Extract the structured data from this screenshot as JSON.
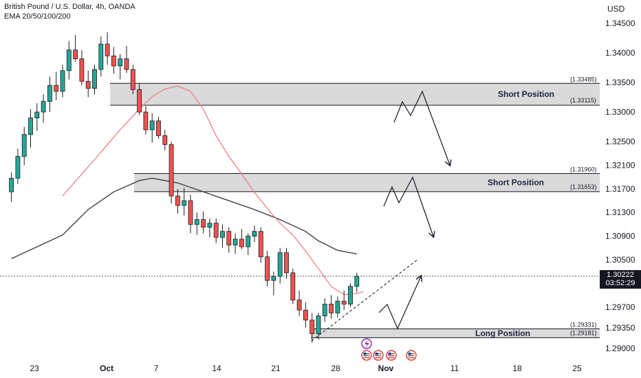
{
  "header": {
    "title": "British Pound / U.S. Dollar, 4h, OANDA",
    "indicator": "EMA 20/50/100/200"
  },
  "currency_label": "USD",
  "price_badge": {
    "price": "1.30222",
    "countdown": "03:52:29"
  },
  "colors": {
    "up": "#26a69a",
    "down": "#ef5350",
    "candle_body": "#1a1a1a",
    "ema_fast": "#f08080",
    "ema_slow": "#4a4a4a",
    "zone_fill": "#d4d4d4",
    "zone_border": "#131722"
  },
  "icons": [
    "lightning-event-icon",
    "us-flag-icon",
    "us-flag-icon",
    "us-flag-icon",
    "us-flag-icon"
  ],
  "chart_data": {
    "type": "candlestick",
    "symbol": "GBPUSD",
    "timeframe": "4h",
    "y_ticks": [
      "1.34500",
      "1.34000",
      "1.33500",
      "1.33000",
      "1.32500",
      "1.32100",
      "1.31700",
      "1.31300",
      "1.30900",
      "1.30500",
      "1.29700",
      "1.29350",
      "1.29000"
    ],
    "x_ticks": [
      "23",
      "Oct",
      "7",
      "14",
      "21",
      "28",
      "Nov",
      "11",
      "18",
      "25"
    ],
    "ylim": [
      1.29,
      1.346
    ],
    "zones": [
      {
        "label": "Short Position",
        "top": 1.33485,
        "bottom": 1.33115,
        "top_label": "(1.33485)",
        "bottom_label": "(1.33115)"
      },
      {
        "label": "Short Position",
        "top": 1.3196,
        "bottom": 1.31653,
        "top_label": "(1.31960)",
        "bottom_label": "(1.31653)"
      },
      {
        "label": "Long Position",
        "top": 1.29331,
        "bottom": 1.29181,
        "top_label": "(1.29331)",
        "bottom_label": "(1.29181)"
      }
    ],
    "last_price": 1.30222,
    "ema_fast_path": [
      [
        0,
        1.3158
      ],
      [
        3,
        1.3195
      ],
      [
        6,
        1.3232
      ],
      [
        9,
        1.327
      ],
      [
        12,
        1.3305
      ],
      [
        14,
        1.3326
      ],
      [
        16,
        1.3339
      ],
      [
        18,
        1.3344
      ],
      [
        20,
        1.3335
      ],
      [
        22,
        1.3305
      ],
      [
        24,
        1.326
      ],
      [
        26,
        1.3225
      ],
      [
        28,
        1.3195
      ],
      [
        30,
        1.3164
      ],
      [
        32,
        1.3137
      ],
      [
        34,
        1.3112
      ],
      [
        36,
        1.3092
      ],
      [
        38,
        1.3065
      ],
      [
        40,
        1.3035
      ],
      [
        42,
        1.3005
      ],
      [
        44,
        1.2991
      ],
      [
        46,
        1.2993
      ],
      [
        47,
        1.2996
      ]
    ],
    "ema_slow_path": [
      [
        -8,
        1.3052
      ],
      [
        0,
        1.3092
      ],
      [
        4,
        1.3135
      ],
      [
        8,
        1.3165
      ],
      [
        12,
        1.3184
      ],
      [
        14,
        1.3188
      ],
      [
        18,
        1.318
      ],
      [
        22,
        1.3165
      ],
      [
        26,
        1.315
      ],
      [
        30,
        1.3135
      ],
      [
        34,
        1.3118
      ],
      [
        38,
        1.3098
      ],
      [
        40,
        1.3082
      ],
      [
        43,
        1.3066
      ],
      [
        46,
        1.306
      ]
    ],
    "candles_ohlc": [
      [
        -8,
        1.3165,
        1.3198,
        1.3148,
        1.3188
      ],
      [
        -7,
        1.3188,
        1.3238,
        1.3178,
        1.3225
      ],
      [
        -6,
        1.3225,
        1.3275,
        1.321,
        1.3262
      ],
      [
        -5,
        1.3262,
        1.3305,
        1.324,
        1.329
      ],
      [
        -4,
        1.329,
        1.3315,
        1.3268,
        1.33
      ],
      [
        -3,
        1.33,
        1.333,
        1.3282,
        1.3318
      ],
      [
        -2,
        1.3318,
        1.336,
        1.33,
        1.3345
      ],
      [
        -1,
        1.3345,
        1.3368,
        1.332,
        1.3335
      ],
      [
        0,
        1.3335,
        1.338,
        1.3325,
        1.337
      ],
      [
        1,
        1.337,
        1.342,
        1.3355,
        1.3405
      ],
      [
        2,
        1.3405,
        1.343,
        1.3385,
        1.339
      ],
      [
        3,
        1.339,
        1.3405,
        1.3345,
        1.3352
      ],
      [
        4,
        1.3352,
        1.337,
        1.3325,
        1.334
      ],
      [
        5,
        1.334,
        1.338,
        1.333,
        1.3372
      ],
      [
        6,
        1.3372,
        1.3428,
        1.336,
        1.3415
      ],
      [
        7,
        1.3415,
        1.3435,
        1.338,
        1.3395
      ],
      [
        8,
        1.3395,
        1.341,
        1.3365,
        1.3378
      ],
      [
        9,
        1.3378,
        1.3398,
        1.3355,
        1.339
      ],
      [
        10,
        1.339,
        1.3412,
        1.3366,
        1.3372
      ],
      [
        11,
        1.3372,
        1.338,
        1.333,
        1.3338
      ],
      [
        12,
        1.3338,
        1.3348,
        1.3295,
        1.33
      ],
      [
        13,
        1.33,
        1.331,
        1.3262,
        1.327
      ],
      [
        14,
        1.327,
        1.3298,
        1.3248,
        1.3285
      ],
      [
        15,
        1.3285,
        1.3292,
        1.3255,
        1.326
      ],
      [
        16,
        1.326,
        1.327,
        1.3235,
        1.3245
      ],
      [
        17,
        1.3245,
        1.325,
        1.3145,
        1.3158
      ],
      [
        18,
        1.3158,
        1.317,
        1.3128,
        1.3142
      ],
      [
        19,
        1.3142,
        1.3172,
        1.3125,
        1.315
      ],
      [
        20,
        1.315,
        1.316,
        1.3095,
        1.311
      ],
      [
        21,
        1.311,
        1.313,
        1.3092,
        1.3118
      ],
      [
        22,
        1.3118,
        1.3132,
        1.3095,
        1.3105
      ],
      [
        23,
        1.3105,
        1.312,
        1.3088,
        1.3112
      ],
      [
        24,
        1.3112,
        1.312,
        1.3078,
        1.3088
      ],
      [
        25,
        1.3088,
        1.311,
        1.307,
        1.3098
      ],
      [
        26,
        1.3098,
        1.3105,
        1.3062,
        1.3075
      ],
      [
        27,
        1.3075,
        1.3095,
        1.306,
        1.3085
      ],
      [
        28,
        1.3085,
        1.3102,
        1.3068,
        1.3072
      ],
      [
        29,
        1.3072,
        1.3095,
        1.3058,
        1.309
      ],
      [
        30,
        1.309,
        1.3108,
        1.308,
        1.3098
      ],
      [
        31,
        1.3098,
        1.3105,
        1.3045,
        1.3055
      ],
      [
        32,
        1.3055,
        1.3065,
        1.3005,
        1.3015
      ],
      [
        33,
        1.3015,
        1.303,
        1.299,
        1.3022
      ],
      [
        34,
        1.3022,
        1.307,
        1.301,
        1.3062
      ],
      [
        35,
        1.3062,
        1.307,
        1.3018,
        1.3028
      ],
      [
        36,
        1.3028,
        1.3035,
        1.2975,
        1.2982
      ],
      [
        37,
        1.2982,
        1.2998,
        1.2955,
        1.2965
      ],
      [
        38,
        1.2965,
        1.2978,
        1.2935,
        1.2948
      ],
      [
        39,
        1.2948,
        1.296,
        1.291,
        1.2925
      ],
      [
        40,
        1.2925,
        1.296,
        1.2915,
        1.2955
      ],
      [
        41,
        1.2955,
        1.2985,
        1.2945,
        1.2975
      ],
      [
        42,
        1.2975,
        1.299,
        1.295,
        1.296
      ],
      [
        43,
        1.296,
        1.2988,
        1.2952,
        1.298
      ],
      [
        44,
        1.298,
        1.2998,
        1.2965,
        1.2975
      ],
      [
        45,
        1.2975,
        1.301,
        1.297,
        1.3005
      ],
      [
        46,
        1.3005,
        1.3028,
        1.2995,
        1.3022
      ]
    ],
    "scenario_paths": [
      [
        [
          573,
          178
        ],
        [
          585,
          148
        ],
        [
          597,
          168
        ],
        [
          614,
          133
        ],
        [
          654,
          240
        ]
      ],
      [
        [
          558,
          300
        ],
        [
          570,
          272
        ],
        [
          580,
          295
        ],
        [
          600,
          258
        ],
        [
          630,
          344
        ]
      ],
      [
        [
          551,
          455
        ],
        [
          563,
          443
        ],
        [
          578,
          478
        ],
        [
          612,
          402
        ]
      ]
    ],
    "trendline": [
      [
        453,
        496
      ],
      [
        608,
        377
      ]
    ]
  }
}
